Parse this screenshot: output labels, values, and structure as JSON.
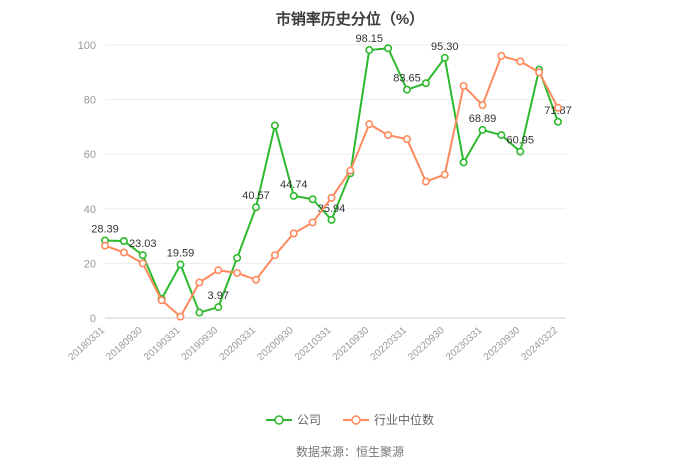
{
  "chart_data": {
    "type": "line",
    "title": "市销率历史分位（%）",
    "source": "数据来源：恒生聚源",
    "ylim": [
      0,
      100
    ],
    "yticks": [
      0,
      20,
      40,
      60,
      80,
      100
    ],
    "grid": "horizontal",
    "legend_position": "bottom",
    "x": [
      "20180331",
      "20180630",
      "20180930",
      "20181231",
      "20190331",
      "20190630",
      "20190930",
      "20191231",
      "20200331",
      "20200630",
      "20200930",
      "20201231",
      "20210331",
      "20210630",
      "20210930",
      "20211231",
      "20220331",
      "20220630",
      "20220930",
      "20221231",
      "20230331",
      "20230630",
      "20230930",
      "20231231",
      "20240322"
    ],
    "x_tick_indices": [
      0,
      2,
      4,
      6,
      8,
      10,
      12,
      14,
      16,
      18,
      20,
      22,
      24
    ],
    "series": [
      {
        "name": "公司",
        "color": "#2db92d",
        "values": [
          28.39,
          28.2,
          23.03,
          7.0,
          19.59,
          2.0,
          3.97,
          22.0,
          40.57,
          70.5,
          44.74,
          43.5,
          35.94,
          53.0,
          98.15,
          98.8,
          83.65,
          86.0,
          95.3,
          57.0,
          68.89,
          67.0,
          60.95,
          91.0,
          71.87
        ],
        "point_labels": [
          {
            "i": 0,
            "text": "28.39"
          },
          {
            "i": 2,
            "text": "23.03"
          },
          {
            "i": 4,
            "text": "19.59"
          },
          {
            "i": 6,
            "text": "3.97"
          },
          {
            "i": 8,
            "text": "40.57"
          },
          {
            "i": 10,
            "text": "44.74"
          },
          {
            "i": 12,
            "text": "35.94"
          },
          {
            "i": 14,
            "text": "98.15"
          },
          {
            "i": 16,
            "text": "83.65"
          },
          {
            "i": 18,
            "text": "95.30"
          },
          {
            "i": 20,
            "text": "68.89"
          },
          {
            "i": 22,
            "text": "60.95"
          },
          {
            "i": 24,
            "text": "71.87"
          }
        ]
      },
      {
        "name": "行业中位数",
        "color": "#ff8a5e",
        "values": [
          26.5,
          24.0,
          20.0,
          6.5,
          0.5,
          13.0,
          17.5,
          16.5,
          14.0,
          23.0,
          31.0,
          35.0,
          44.0,
          54.0,
          71.0,
          67.0,
          65.5,
          50.0,
          52.5,
          85.0,
          78.0,
          96.0,
          94.0,
          90.0,
          77.0
        ],
        "point_labels": []
      }
    ]
  }
}
